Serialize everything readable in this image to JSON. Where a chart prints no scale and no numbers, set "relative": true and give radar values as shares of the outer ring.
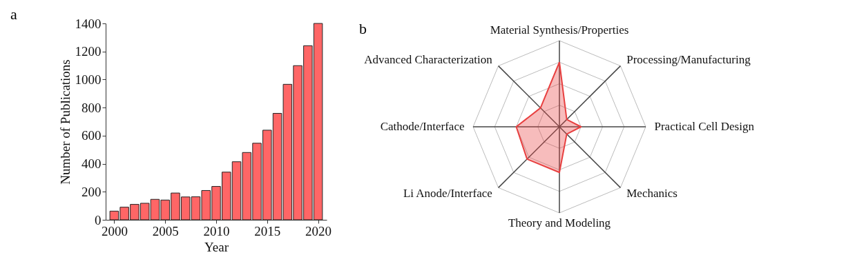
{
  "chart_data": [
    {
      "type": "bar",
      "title": "a",
      "xlabel": "Year",
      "ylabel": "Number of Publications",
      "x": [
        2000,
        2001,
        2002,
        2003,
        2004,
        2005,
        2006,
        2007,
        2008,
        2009,
        2010,
        2011,
        2012,
        2013,
        2014,
        2015,
        2016,
        2017,
        2018,
        2019,
        2020
      ],
      "values": [
        62,
        90,
        110,
        118,
        146,
        141,
        191,
        163,
        164,
        209,
        238,
        340,
        414,
        480,
        546,
        639,
        759,
        966,
        1099,
        1241,
        1400
      ],
      "color": "#ff6666",
      "xlim": [
        1999.5,
        2020.5
      ],
      "xticks": [
        2000,
        2005,
        2010,
        2015,
        2020
      ],
      "ylim": [
        0,
        1400
      ],
      "yticks": [
        0,
        200,
        400,
        600,
        800,
        1000,
        1200,
        1400
      ],
      "grid": false
    },
    {
      "type": "radar",
      "title": "b",
      "relative": true,
      "grid": true,
      "categories": [
        "Material Synthesis/Properties",
        "Processing/Manufacturing",
        "Practical Cell Design",
        "Mechanics",
        "Theory and Modeling",
        "Li Anode/Interface",
        "Cathode/Interface",
        "Advanced Characterization"
      ],
      "series": [
        {
          "color": "#e84040",
          "values": [
            0.75,
            0.12,
            0.25,
            0.12,
            0.53,
            0.53,
            0.5,
            0.31
          ]
        }
      ]
    }
  ]
}
